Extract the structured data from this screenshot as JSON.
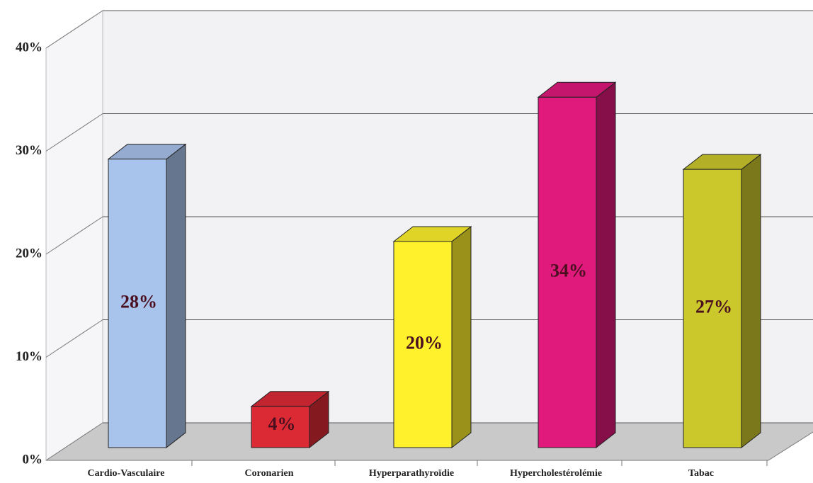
{
  "chart_data": {
    "type": "bar3d",
    "categories": [
      "Cardio-Vasculaire",
      "Coronarien",
      "Hyperparathyroïdie",
      "Hypercholestérolémie",
      "Tabac"
    ],
    "values": [
      28,
      4,
      20,
      34,
      27
    ],
    "value_labels": [
      "28%",
      "4%",
      "20%",
      "34%",
      "27%"
    ],
    "colors": [
      "#a9c4ec",
      "#dc2a35",
      "#fff22c",
      "#e0197c",
      "#cbc82c"
    ],
    "ylim": [
      0,
      40
    ],
    "yticks": [
      {
        "value": 0,
        "label": "0%"
      },
      {
        "value": 10,
        "label": "10%"
      },
      {
        "value": 20,
        "label": "20%"
      },
      {
        "value": 30,
        "label": "30%"
      },
      {
        "value": 40,
        "label": "40%"
      }
    ],
    "grid": true
  }
}
